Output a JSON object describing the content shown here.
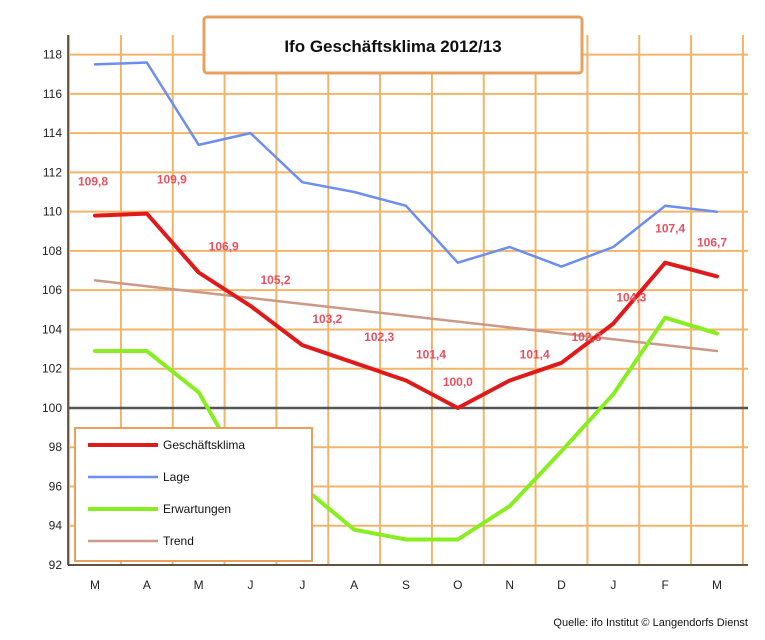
{
  "chart_data": {
    "type": "line",
    "title": "Ifo Geschäftsklima 2012/13",
    "source": "Quelle: ifo Institut © Langendorfs Dienst",
    "categories": [
      "M",
      "A",
      "M",
      "J",
      "J",
      "A",
      "S",
      "O",
      "N",
      "D",
      "J",
      "F",
      "M"
    ],
    "ylim": [
      92,
      119
    ],
    "yticks": [
      92,
      94,
      96,
      98,
      100,
      102,
      104,
      106,
      108,
      110,
      112,
      114,
      116,
      118
    ],
    "ytick_labels": [
      "92",
      "94",
      "96",
      "98",
      "100",
      "102",
      "104",
      "106",
      "108",
      "110",
      "112",
      "114",
      "116",
      "118"
    ],
    "reference_line": 100,
    "grid": true,
    "legend_position": "bottom-left",
    "series": [
      {
        "name": "Geschäftsklima",
        "color": "#e01a1a",
        "width": 4,
        "values": [
          109.8,
          109.9,
          106.9,
          105.2,
          103.2,
          102.3,
          101.4,
          100.0,
          101.4,
          102.3,
          104.3,
          107.4,
          106.7
        ],
        "labels": [
          "109,8",
          "109,9",
          "106,9",
          "105,2",
          "103,2",
          "102,3",
          "101,4",
          "100,0",
          "101,4",
          "102,3",
          "104,3",
          "107,4",
          "106,7"
        ]
      },
      {
        "name": "Lage",
        "color": "#6b8ef0",
        "width": 2.5,
        "values": [
          117.5,
          117.6,
          113.4,
          114.0,
          111.5,
          111.0,
          110.3,
          107.4,
          108.2,
          107.2,
          108.2,
          110.3,
          110.0
        ]
      },
      {
        "name": "Erwartungen",
        "color": "#88ee22",
        "width": 4,
        "values": [
          102.9,
          102.9,
          100.8,
          96.2,
          96.0,
          93.8,
          93.3,
          93.3,
          95.0,
          97.8,
          100.7,
          104.6,
          103.8
        ]
      },
      {
        "name": "Trend",
        "color": "#cc9988",
        "width": 2.5,
        "values": [
          106.5,
          106.2,
          105.9,
          105.6,
          105.3,
          105.0,
          104.7,
          104.4,
          104.1,
          103.8,
          103.5,
          103.2,
          102.9
        ]
      }
    ]
  }
}
